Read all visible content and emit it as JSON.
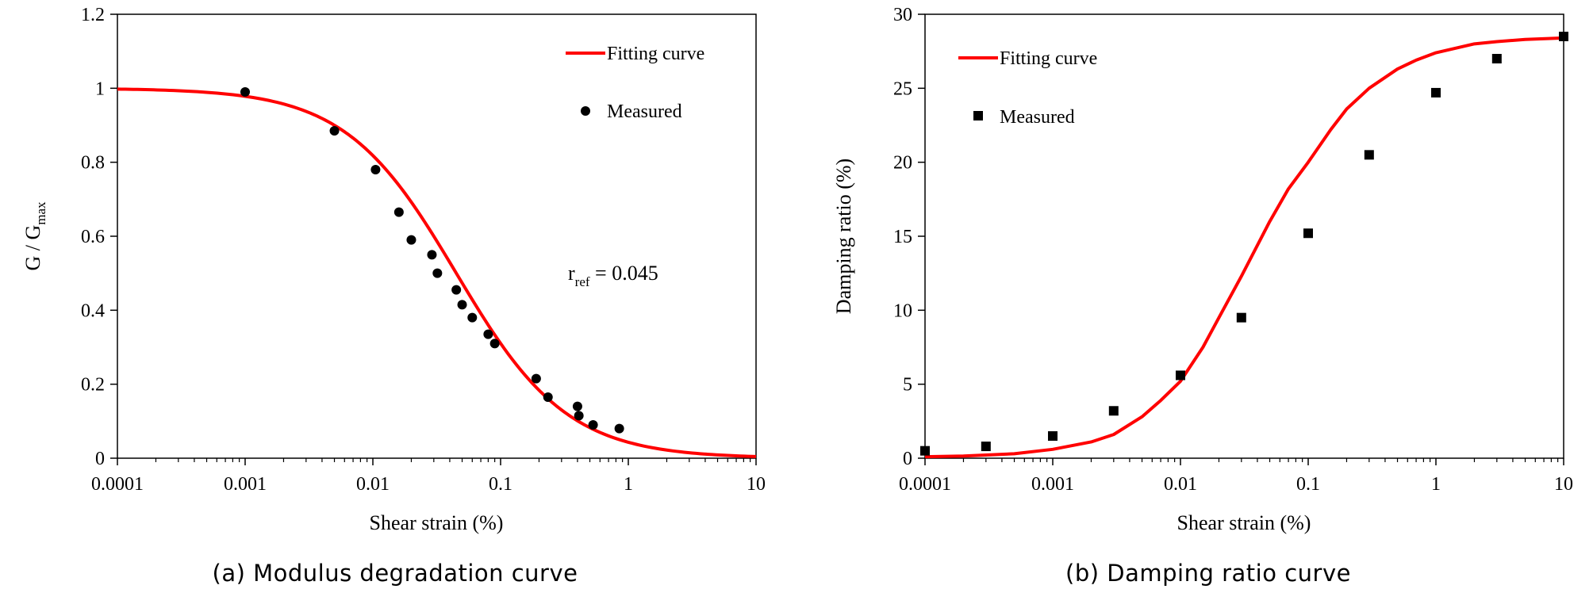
{
  "chart_data": [
    {
      "type": "scatter",
      "panel_caption": "(a) Modulus degradation curve",
      "xlabel": "Shear strain (%)",
      "ylabel_main": "G / G",
      "ylabel_sub": "max",
      "xscale": "log",
      "xlim": [
        0.0001,
        10
      ],
      "ylim": [
        0,
        1.2
      ],
      "x_ticks": [
        0.0001,
        0.001,
        0.01,
        0.1,
        1,
        10
      ],
      "x_tick_labels": [
        "0.0001",
        "0.001",
        "0.01",
        "0.1",
        "1",
        "10"
      ],
      "y_ticks": [
        0,
        0.2,
        0.4,
        0.6,
        0.8,
        1,
        1.2
      ],
      "y_tick_labels": [
        "0",
        "0.2",
        "0.4",
        "0.6",
        "0.8",
        "1",
        "1.2"
      ],
      "legend_placement": "top-right",
      "annotation_main": "r",
      "annotation_sub": "ref",
      "annotation_value": " = 0.045",
      "series": [
        {
          "name": "Fitting curve",
          "kind": "line",
          "color": "#ff0000",
          "model": "hyperbolic",
          "gamma_ref": 0.045
        },
        {
          "name": "Measured",
          "kind": "points",
          "marker": "circle",
          "color": "#000000",
          "points": [
            [
              0.001,
              0.99
            ],
            [
              0.005,
              0.885
            ],
            [
              0.0105,
              0.78
            ],
            [
              0.016,
              0.665
            ],
            [
              0.02,
              0.59
            ],
            [
              0.029,
              0.55
            ],
            [
              0.032,
              0.5
            ],
            [
              0.045,
              0.455
            ],
            [
              0.05,
              0.415
            ],
            [
              0.06,
              0.38
            ],
            [
              0.08,
              0.335
            ],
            [
              0.09,
              0.31
            ],
            [
              0.19,
              0.215
            ],
            [
              0.235,
              0.165
            ],
            [
              0.4,
              0.14
            ],
            [
              0.41,
              0.115
            ],
            [
              0.53,
              0.09
            ],
            [
              0.85,
              0.08
            ]
          ]
        }
      ]
    },
    {
      "type": "scatter",
      "panel_caption": "(b) Damping ratio curve",
      "xlabel": "Shear strain (%)",
      "ylabel": "Damping ratio (%)",
      "xscale": "log",
      "xlim": [
        0.0001,
        10
      ],
      "ylim": [
        0,
        30
      ],
      "x_ticks": [
        0.0001,
        0.001,
        0.01,
        0.1,
        1,
        10
      ],
      "x_tick_labels": [
        "0.0001",
        "0.001",
        "0.01",
        "0.1",
        "1",
        "10"
      ],
      "y_ticks": [
        0,
        5,
        10,
        15,
        20,
        25,
        30
      ],
      "y_tick_labels": [
        "0",
        "5",
        "10",
        "15",
        "20",
        "25",
        "30"
      ],
      "legend_placement": "top-left",
      "series": [
        {
          "name": "Fitting curve",
          "kind": "line",
          "color": "#ff0000",
          "points": [
            [
              0.0001,
              0.1
            ],
            [
              0.0002,
              0.15
            ],
            [
              0.0005,
              0.3
            ],
            [
              0.001,
              0.6
            ],
            [
              0.002,
              1.1
            ],
            [
              0.003,
              1.6
            ],
            [
              0.005,
              2.8
            ],
            [
              0.007,
              3.9
            ],
            [
              0.01,
              5.2
            ],
            [
              0.015,
              7.5
            ],
            [
              0.02,
              9.5
            ],
            [
              0.03,
              12.3
            ],
            [
              0.05,
              16.0
            ],
            [
              0.07,
              18.2
            ],
            [
              0.1,
              20.0
            ],
            [
              0.15,
              22.2
            ],
            [
              0.2,
              23.6
            ],
            [
              0.3,
              25.0
            ],
            [
              0.5,
              26.3
            ],
            [
              0.7,
              26.9
            ],
            [
              1,
              27.4
            ],
            [
              2,
              28.0
            ],
            [
              3,
              28.15
            ],
            [
              5,
              28.3
            ],
            [
              10,
              28.4
            ]
          ]
        },
        {
          "name": "Measured",
          "kind": "points",
          "marker": "square",
          "color": "#000000",
          "points": [
            [
              0.0001,
              0.5
            ],
            [
              0.0003,
              0.8
            ],
            [
              0.001,
              1.5
            ],
            [
              0.003,
              3.2
            ],
            [
              0.01,
              5.6
            ],
            [
              0.03,
              9.5
            ],
            [
              0.1,
              15.2
            ],
            [
              0.3,
              20.5
            ],
            [
              1,
              24.7
            ],
            [
              3,
              27.0
            ],
            [
              10,
              28.5
            ]
          ]
        }
      ]
    }
  ]
}
